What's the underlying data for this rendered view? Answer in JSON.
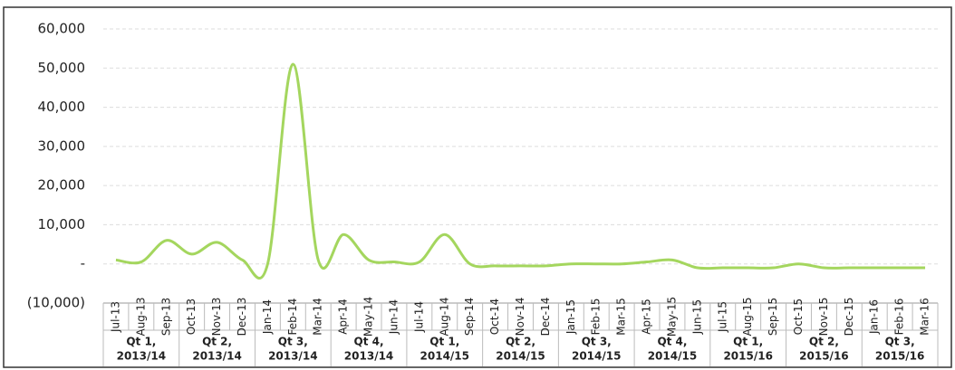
{
  "chart_data": {
    "type": "line",
    "categories": [
      "Jul-13",
      "Aug-13",
      "Sep-13",
      "Oct-13",
      "Nov-13",
      "Dec-13",
      "Jan-14",
      "Feb-14",
      "Mar-14",
      "Apr-14",
      "May-14",
      "Jun-14",
      "Jul-14",
      "Aug-14",
      "Sep-14",
      "Oct-14",
      "Nov-14",
      "Dec-14",
      "Jan-15",
      "Feb-15",
      "Mar-15",
      "Apr-15",
      "May-15",
      "Jun-15",
      "Jul-15",
      "Aug-15",
      "Sep-15",
      "Oct-15",
      "Nov-15",
      "Dec-15",
      "Jan-16",
      "Feb-16",
      "Mar-16"
    ],
    "quarters": [
      [
        "Qt 1,",
        "2013/14"
      ],
      [
        "Qt 2,",
        "2013/14"
      ],
      [
        "Qt 3,",
        "2013/14"
      ],
      [
        "Qt 4,",
        "2013/14"
      ],
      [
        "Qt 1,",
        "2014/15"
      ],
      [
        "Qt 2,",
        "2014/15"
      ],
      [
        "Qt 3,",
        "2014/15"
      ],
      [
        "Qt 4,",
        "2014/15"
      ],
      [
        "Qt 1,",
        "2015/16"
      ],
      [
        "Qt 2,",
        "2015/16"
      ],
      [
        "Qt 3,",
        "2015/16"
      ]
    ],
    "values": [
      1000,
      500,
      6000,
      2500,
      5500,
      1000,
      0,
      51000,
      1000,
      7500,
      1000,
      500,
      500,
      7500,
      0,
      -500,
      -500,
      -500,
      0,
      0,
      0,
      500,
      1000,
      -1000,
      -1000,
      -1000,
      -1000,
      0,
      -1000,
      -1000,
      -1000,
      -1000,
      -1000
    ],
    "color": "#a4d65e",
    "ylim": [
      -10000,
      60000
    ],
    "yticks": [
      {
        "value": -10000,
        "label": "(10,000)"
      },
      {
        "value": 0,
        "label": "-"
      },
      {
        "value": 10000,
        "label": "10,000"
      },
      {
        "value": 20000,
        "label": "20,000"
      },
      {
        "value": 30000,
        "label": "30,000"
      },
      {
        "value": 40000,
        "label": "40,000"
      },
      {
        "value": 50000,
        "label": "50,000"
      },
      {
        "value": 60000,
        "label": "60,000"
      }
    ],
    "grid": true
  }
}
